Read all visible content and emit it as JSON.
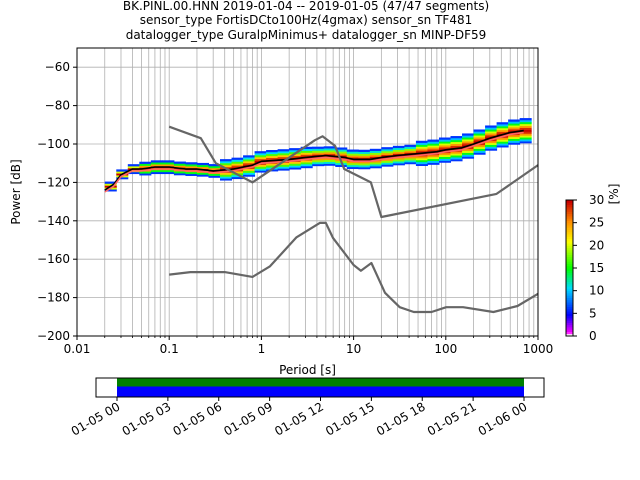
{
  "title": {
    "line1": "BK.PINL.00.HNN   2019-01-04 -- 2019-01-05  (47/47 segments)",
    "line2": "sensor_type FortisDCto100Hz(4gmax) sensor_sn TF481",
    "line3": "datalogger_type GuralpMinimus+ datalogger_sn MINP-DF59"
  },
  "chart_data": [
    {
      "type": "heatmap",
      "xlabel": "Period [s]",
      "ylabel": "Power [dB]",
      "xscale": "log",
      "xlim": [
        0.01,
        1000
      ],
      "ylim": [
        -200,
        -50
      ],
      "x_ticks": [
        0.01,
        0.1,
        1,
        10,
        100,
        1000
      ],
      "x_tick_labels": [
        "0.01",
        "0.1",
        "1",
        "10",
        "100",
        "1000"
      ],
      "y_ticks": [
        -200,
        -180,
        -160,
        -140,
        -120,
        -100,
        -80,
        -60
      ],
      "y_tick_labels": [
        "−200",
        "−180",
        "−160",
        "−140",
        "−120",
        "−100",
        "−80",
        "−60"
      ],
      "grid": "on (major and minor x, major y)",
      "colorbar": {
        "label": "[%]",
        "range": [
          0,
          30
        ],
        "ticks": [
          0,
          5,
          10,
          15,
          20,
          25,
          30
        ],
        "tick_labels": [
          "0",
          "5",
          "10",
          "15",
          "20",
          "25",
          "30"
        ],
        "colormap": "pqlx"
      },
      "series": [
        {
          "name": "",
          "role": "mean",
          "color": "#000000",
          "x": [
            0.02,
            0.025,
            0.03,
            0.04,
            0.05,
            0.07,
            0.1,
            0.15,
            0.2,
            0.3,
            0.5,
            0.8,
            1,
            2,
            3,
            5,
            8,
            10,
            15,
            20,
            30,
            50,
            80,
            100,
            150,
            200,
            300,
            500,
            700
          ],
          "y": [
            -124,
            -121,
            -116,
            -113,
            -113,
            -112,
            -112,
            -113,
            -113,
            -114,
            -113,
            -111,
            -109,
            -108,
            -107,
            -106,
            -107,
            -108,
            -108,
            -107,
            -106,
            -105,
            -104,
            -103,
            -102,
            -100,
            -97,
            -94,
            -93
          ]
        },
        {
          "name": "",
          "role": "mode",
          "color": "#ff6666",
          "x": [
            0.02,
            0.025,
            0.03,
            0.04,
            0.05,
            0.07,
            0.1,
            0.15,
            0.2,
            0.3,
            0.5,
            0.8,
            1,
            2,
            3,
            5,
            8,
            10,
            15,
            20,
            30,
            50,
            80,
            100,
            150,
            200,
            300,
            500,
            700
          ],
          "y": [
            -125,
            -122,
            -117,
            -114,
            -114,
            -113,
            -113,
            -114,
            -114,
            -115,
            -114,
            -112,
            -110,
            -109,
            -108,
            -107,
            -108,
            -109,
            -109,
            -108,
            -107,
            -106,
            -105,
            -104,
            -103,
            -101,
            -98,
            -95,
            -94
          ]
        },
        {
          "name": "",
          "role": "NHNM",
          "color": "#666666",
          "x": [
            0.1,
            0.22,
            0.32,
            0.8,
            3.8,
            4.6,
            6.3,
            7.9,
            15.4,
            20,
            354.8,
            1000
          ],
          "y": [
            -91,
            -97,
            -110,
            -120,
            -98,
            -96,
            -101,
            -113,
            -120,
            -138,
            -126,
            -111
          ]
        },
        {
          "name": "",
          "role": "NLNM",
          "color": "#666666",
          "x": [
            0.1,
            0.17,
            0.4,
            0.8,
            1.24,
            2.4,
            4.3,
            5,
            6,
            10,
            12,
            15.6,
            21.9,
            31.6,
            45,
            70,
            101,
            154,
            328,
            600,
            1000
          ],
          "y": [
            -168,
            -166.7,
            -166.7,
            -169.2,
            -163.7,
            -148.6,
            -141.1,
            -141.1,
            -149,
            -163,
            -166,
            -162,
            -177.5,
            -185,
            -187.5,
            -187.5,
            -185,
            -185,
            -187.5,
            -184.4,
            -178
          ]
        }
      ]
    },
    {
      "type": "timeline",
      "x_tick_labels": [
        "01-05 00",
        "01-05 03",
        "01-05 06",
        "01-05 09",
        "01-05 12",
        "01-05 15",
        "01-05 18",
        "01-05 21",
        "01-06 00"
      ],
      "coverage": {
        "start": "01-05 00",
        "end": "01-06 00",
        "bands": [
          {
            "name": "data",
            "color": "#008000"
          },
          {
            "name": "psd",
            "color": "#0000ff"
          }
        ]
      }
    }
  ]
}
